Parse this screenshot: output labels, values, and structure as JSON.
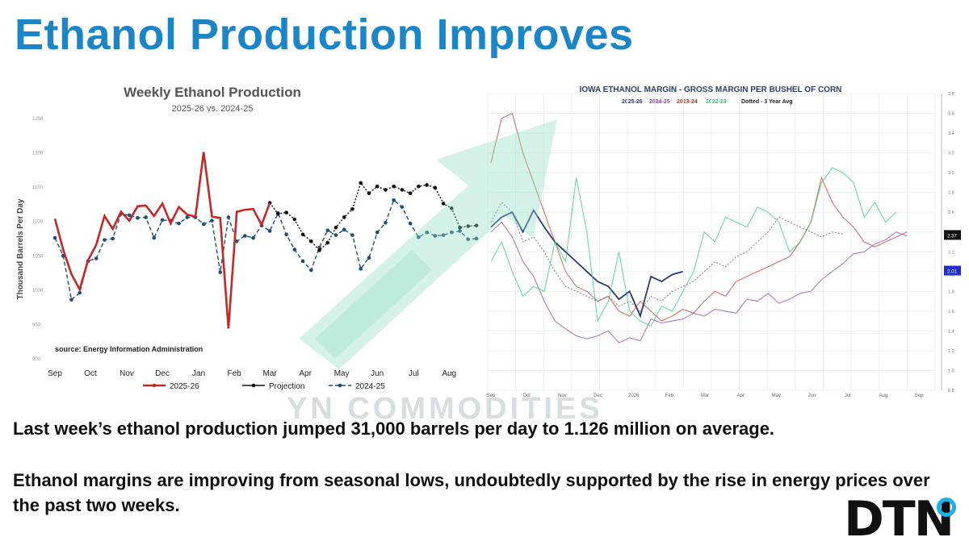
{
  "slide": {
    "title": "Ethanol Production Improves",
    "text1": "Last week’s ethanol production jumped 31,000 barrels per day to 1.126 million on average.",
    "text2": "Ethanol margins are improving from seasonal lows, undoubtedly supported by the rise in energy prices over the past two weeks.",
    "logo": "DTN",
    "watermark": "YN COMMODITIES"
  },
  "colors": {
    "title": "#1a86c8",
    "series_2025_26": "#c62828",
    "series_projection": "#111111",
    "series_2024_25": "#1d4f7a",
    "arrow": "#9fe0c9",
    "iowa_2025_26": "#2a3a78",
    "iowa_2024_25": "#8e44ad",
    "iowa_2023_24": "#c0392b",
    "iowa_2022_23": "#2ecc71"
  },
  "chart_data": [
    {
      "type": "line",
      "title": "Weekly Ethanol Production",
      "subtitle": "2025-26 vs. 2024-25",
      "ylabel": "Thousand Barrels Per Day",
      "source": "source: Energy Information Administration",
      "ylim": [
        900,
        1250
      ],
      "yticks": [
        "1250",
        "1200",
        "1150",
        "1100",
        "1050",
        "1000",
        "950",
        "900"
      ],
      "xlim": [
        0,
        51
      ],
      "xticks": [
        {
          "label": "Sep",
          "w": 0
        },
        {
          "label": "Oct",
          "w": 4.3
        },
        {
          "label": "Nov",
          "w": 8.7
        },
        {
          "label": "Dec",
          "w": 13
        },
        {
          "label": "Jan",
          "w": 17.4
        },
        {
          "label": "Feb",
          "w": 21.7
        },
        {
          "label": "Mar",
          "w": 26
        },
        {
          "label": "Apr",
          "w": 30.3
        },
        {
          "label": "May",
          "w": 34.7
        },
        {
          "label": "Jun",
          "w": 39
        },
        {
          "label": "Jul",
          "w": 43.4
        },
        {
          "label": "Aug",
          "w": 47.7
        }
      ],
      "legend": [
        "2025-26",
        "Projection",
        "2024-25"
      ],
      "series": [
        {
          "name": "2025-26",
          "values": [
            1103,
            1058,
            1022,
            1000,
            1042,
            1065,
            1107,
            1088,
            1113,
            1100,
            1121,
            1122,
            1107,
            1125,
            1096,
            1120,
            1109,
            1106,
            1200,
            1106,
            1104,
            943,
            1113,
            1116,
            1117,
            1094,
            1126
          ]
        },
        {
          "name": "Projection",
          "start": 26,
          "values": [
            1126,
            1110,
            1112,
            1102,
            1080,
            1070,
            1057,
            1068,
            1090,
            1105,
            1117,
            1155,
            1140,
            1150,
            1145,
            1150,
            1145,
            1140,
            1150,
            1152,
            1148,
            1125,
            1118,
            1090,
            1092,
            1093
          ]
        },
        {
          "name": "2024-25",
          "values": [
            1075,
            1049,
            985,
            995,
            1041,
            1045,
            1072,
            1074,
            1110,
            1108,
            1104,
            1105,
            1075,
            1101,
            1100,
            1096,
            1105,
            1105,
            1095,
            1100,
            1025,
            1105,
            1070,
            1078,
            1075,
            1093,
            1085,
            1111,
            1080,
            1058,
            1041,
            1028,
            1061,
            1086,
            1079,
            1087,
            1079,
            1030,
            1046,
            1083,
            1097,
            1130,
            1120,
            1096,
            1076,
            1083,
            1078,
            1079,
            1083,
            1085,
            1073,
            1074
          ]
        }
      ]
    },
    {
      "type": "line",
      "title": "IOWA ETHANOL MARGIN - GROSS MARGIN PER BUSHEL OF CORN",
      "legend": [
        "2025-26",
        "2024-25",
        "2023-24",
        "2022-23",
        "Dotted - 3 Year Avg"
      ],
      "ylim": [
        0.8,
        3.8
      ],
      "yticks": [
        "3.8",
        "3.6",
        "3.4",
        "3.2",
        "3.0",
        "2.8",
        "2.6",
        "2.4",
        "2.2",
        "2.0",
        "1.8",
        "1.6",
        "1.4",
        "1.2",
        "1.0",
        "0.8"
      ],
      "value_badges": [
        "2.37",
        "2.01"
      ],
      "xticks": [
        "Sep",
        "Oct",
        "Nov",
        "Dec",
        "2026",
        "Feb",
        "Mar",
        "Apr",
        "May",
        "Jun",
        "Jul",
        "Aug",
        "Sep"
      ],
      "series": [
        {
          "name": "2025-26",
          "values": [
            2.45,
            2.55,
            2.6,
            2.4,
            2.62,
            2.45,
            2.3,
            2.2,
            2.1,
            2.0,
            1.9,
            1.85,
            1.72,
            1.8,
            1.55,
            1.95,
            1.9,
            1.97,
            2.0
          ]
        },
        {
          "name": "2024-25",
          "values": [
            2.4,
            2.5,
            2.35,
            2.1,
            1.95,
            1.7,
            1.5,
            1.42,
            1.35,
            1.32,
            1.35,
            1.4,
            1.28,
            1.33,
            1.3,
            1.52,
            1.48,
            1.5,
            1.52,
            1.58,
            1.55,
            1.62,
            1.6,
            1.58,
            1.72,
            1.7,
            1.78,
            1.68,
            1.72,
            1.78,
            1.8,
            1.92,
            2.0,
            2.08,
            2.18,
            2.2,
            2.28,
            2.32,
            2.4,
            2.36
          ]
        },
        {
          "name": "2023-24",
          "values": [
            3.1,
            3.55,
            3.6,
            3.2,
            2.9,
            2.6,
            2.3,
            2.0,
            1.85,
            1.8,
            1.7,
            1.75,
            1.6,
            1.55,
            1.7,
            1.6,
            1.5,
            1.55,
            1.62,
            1.58,
            1.7,
            1.8,
            1.75,
            1.9,
            1.95,
            2.0,
            2.05,
            2.1,
            2.15,
            2.3,
            2.5,
            2.95,
            2.7,
            2.55,
            2.45,
            2.3,
            2.25,
            2.3,
            2.35,
            2.4
          ]
        },
        {
          "name": "2022-23",
          "values": [
            2.1,
            2.3,
            2.0,
            1.75,
            1.85,
            1.8,
            2.3,
            2.1,
            2.95,
            2.4,
            1.5,
            1.7,
            2.2,
            1.6,
            1.5,
            1.45,
            1.65,
            1.6,
            1.8,
            2.0,
            2.4,
            2.3,
            2.55,
            2.5,
            2.45,
            2.65,
            2.6,
            2.5,
            2.2,
            2.3,
            2.5,
            2.9,
            3.05,
            3.0,
            2.9,
            2.55,
            2.7,
            2.5,
            2.6
          ]
        },
        {
          "name": "3 Year Avg",
          "values": [
            2.5,
            2.7,
            2.6,
            2.3,
            2.35,
            2.2,
            2.0,
            1.85,
            1.8,
            1.75,
            1.7,
            1.75,
            1.65,
            1.7,
            1.6,
            1.75,
            1.7,
            1.8,
            1.85,
            1.9,
            2.0,
            2.1,
            2.05,
            2.15,
            2.2,
            2.3,
            2.4,
            2.55,
            2.5,
            2.45,
            2.4,
            2.35,
            2.4,
            2.38
          ]
        }
      ]
    }
  ]
}
